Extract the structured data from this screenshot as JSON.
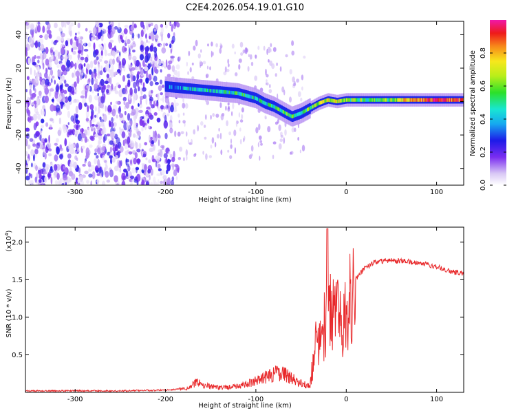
{
  "figure_title": "C2E4.2026.054.19.01.G10",
  "colors": {
    "snr_line": "#e8282a",
    "background": "#ffffff",
    "axis": "#000000"
  },
  "chart_data": [
    {
      "type": "heatmap",
      "title": "C2E4.2026.054.19.01.G10",
      "xlabel": "Height of straight line (km)",
      "ylabel": "Frequency (Hz)",
      "xlim": [
        -355,
        130
      ],
      "ylim": [
        -50,
        48
      ],
      "xticks": [
        -300,
        -200,
        -100,
        0,
        100
      ],
      "xtick_labels": [
        "-300",
        "-200",
        "-100",
        "0",
        "100"
      ],
      "yticks": [
        -40,
        -20,
        0,
        20,
        40
      ],
      "ytick_labels": [
        "-40",
        "-20",
        "0",
        "20",
        "40"
      ],
      "colorbar": {
        "label": "Normalized spectral amplitude",
        "range": [
          0,
          1
        ],
        "ticks": [
          0.0,
          0.2,
          0.4,
          0.6,
          0.8
        ],
        "tick_labels": [
          "0.0",
          "0.2",
          "0.4",
          "0.6",
          "0.8"
        ],
        "colormap": "rainbow (white-violet-blue-cyan-green-yellow-red-magenta)"
      },
      "ridge": {
        "x": [
          -200,
          -180,
          -160,
          -140,
          -120,
          -100,
          -90,
          -80,
          -70,
          -60,
          -50,
          -40,
          -30,
          -20,
          -10,
          0,
          20,
          50,
          80,
          100,
          130
        ],
        "freq": [
          9,
          8,
          7,
          6,
          5,
          2,
          -1,
          -3,
          -6,
          -9,
          -7,
          -4,
          -1,
          1,
          0,
          1,
          1,
          1,
          1,
          1,
          1
        ],
        "amplitude": [
          0.35,
          0.4,
          0.45,
          0.45,
          0.5,
          0.45,
          0.45,
          0.5,
          0.55,
          0.55,
          0.5,
          0.6,
          0.65,
          0.7,
          0.75,
          0.6,
          0.55,
          0.6,
          0.85,
          0.9,
          0.85
        ]
      },
      "noise_region_x": [
        -355,
        -185
      ]
    },
    {
      "type": "line",
      "xlabel": "Height of straight line (km)",
      "ylabel": "SNR (10 * v/v)",
      "scale_label": "(x10",
      "scale_exponent": "4",
      "xlim": [
        -355,
        130
      ],
      "ylim": [
        0,
        2.2
      ],
      "xticks": [
        -300,
        -200,
        -100,
        0,
        100
      ],
      "xtick_labels": [
        "-300",
        "-200",
        "-100",
        "0",
        "100"
      ],
      "yticks": [
        0.5,
        1.0,
        1.5,
        2.0
      ],
      "ytick_labels": [
        "0.5",
        "1.0",
        "1.5",
        "2.0"
      ],
      "series": [
        {
          "name": "SNR",
          "x": [
            -355,
            -300,
            -250,
            -200,
            -175,
            -165,
            -160,
            -150,
            -140,
            -120,
            -100,
            -90,
            -80,
            -70,
            -60,
            -50,
            -45,
            -40,
            -35,
            -30,
            -25,
            -20,
            -15,
            -10,
            -5,
            0,
            5,
            10,
            20,
            30,
            40,
            50,
            60,
            70,
            80,
            90,
            100,
            110,
            120,
            130
          ],
          "y": [
            0.02,
            0.02,
            0.02,
            0.03,
            0.05,
            0.15,
            0.1,
            0.08,
            0.06,
            0.08,
            0.15,
            0.2,
            0.25,
            0.25,
            0.18,
            0.12,
            0.1,
            0.08,
            0.6,
            0.8,
            0.9,
            1.1,
            1.0,
            1.1,
            0.9,
            1.1,
            1.3,
            1.5,
            1.65,
            1.72,
            1.75,
            1.76,
            1.75,
            1.74,
            1.72,
            1.7,
            1.67,
            1.63,
            1.6,
            1.59
          ]
        }
      ]
    }
  ]
}
